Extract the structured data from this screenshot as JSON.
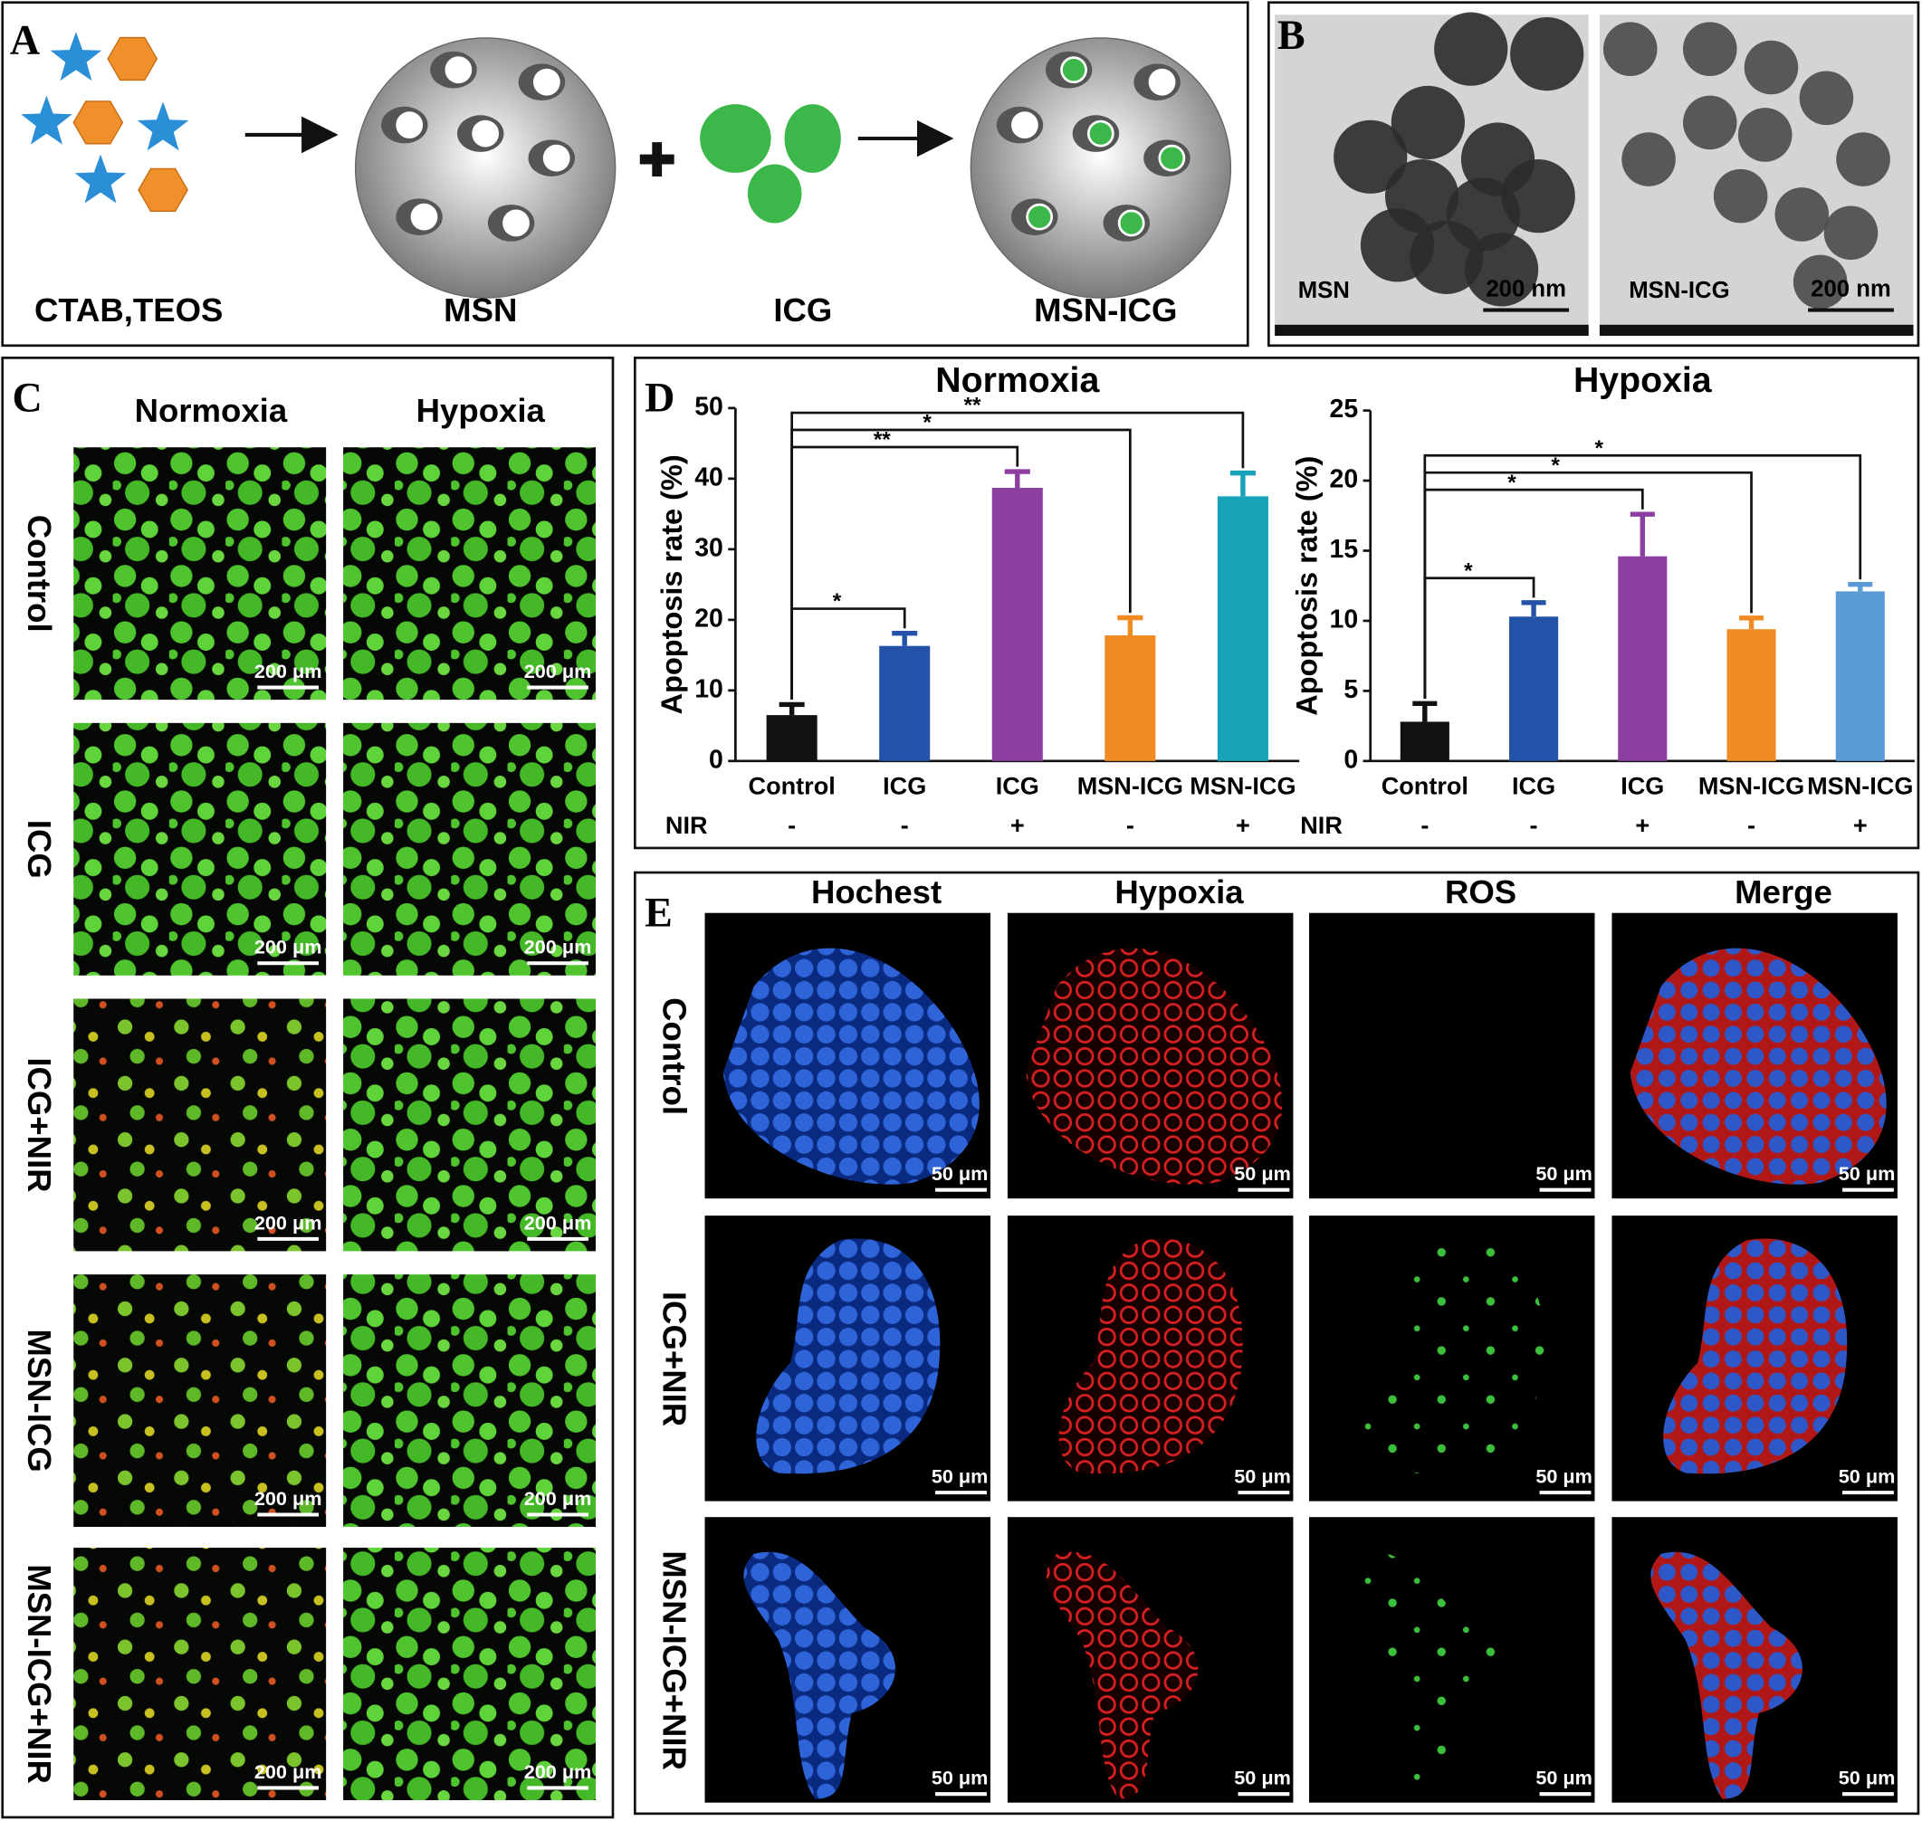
{
  "panels": {
    "A": {
      "label": "A",
      "items": [
        "CTAB,TEOS",
        "MSN",
        "ICG",
        "MSN-ICG"
      ]
    },
    "B": {
      "label": "B",
      "images": [
        {
          "name": "MSN",
          "scale": "200 nm"
        },
        {
          "name": "MSN-ICG",
          "scale": "200 nm"
        }
      ]
    },
    "C": {
      "label": "C",
      "columns": [
        "Normoxia",
        "Hypoxia"
      ],
      "rows": [
        "Control",
        "ICG",
        "ICG+NIR",
        "MSN-ICG",
        "MSN-ICG+NIR"
      ],
      "scale": "200 μm"
    },
    "D": {
      "label": "D"
    },
    "E": {
      "label": "E",
      "columns": [
        "Hochest",
        "Hypoxia",
        "ROS",
        "Merge"
      ],
      "rows": [
        "Control",
        "ICG+NIR",
        "MSN-ICG+NIR"
      ],
      "scale": "50 μm"
    }
  },
  "chart_data": [
    {
      "type": "bar",
      "title": "Normoxia",
      "ylabel": "Apoptosis rate (%)",
      "categories": [
        "Control",
        "ICG",
        "ICG",
        "MSN-ICG",
        "MSN-ICG"
      ],
      "nir_label": "NIR",
      "nir": [
        "-",
        "-",
        "+",
        "-",
        "+"
      ],
      "values": [
        6.5,
        16.3,
        38.7,
        17.8,
        37.5
      ],
      "errors": [
        1.5,
        1.8,
        2.3,
        2.5,
        3.3
      ],
      "colors": [
        "#111111",
        "#2352a8",
        "#8c3fa0",
        "#f08a23",
        "#17a2b8"
      ],
      "ylim": [
        0,
        50
      ],
      "yticks": [
        0,
        10,
        20,
        30,
        40,
        50
      ],
      "significance": [
        {
          "groups": [
            0,
            1
          ],
          "label": "*"
        },
        {
          "groups": [
            0,
            2
          ],
          "label": "**"
        },
        {
          "groups": [
            0,
            3
          ],
          "label": "*"
        },
        {
          "groups": [
            0,
            4
          ],
          "label": "**"
        }
      ]
    },
    {
      "type": "bar",
      "title": "Hypoxia",
      "ylabel": "Apoptosis rate (%)",
      "categories": [
        "Control",
        "ICG",
        "ICG",
        "MSN-ICG",
        "MSN-ICG"
      ],
      "nir_label": "NIR",
      "nir": [
        "-",
        "-",
        "+",
        "-",
        "+"
      ],
      "values": [
        2.8,
        10.3,
        14.6,
        9.4,
        12.1
      ],
      "errors": [
        1.3,
        1.0,
        3.0,
        0.8,
        0.5
      ],
      "colors": [
        "#111111",
        "#2352a8",
        "#8c3fa0",
        "#f08a23",
        "#5b9bd5"
      ],
      "ylim": [
        0,
        25
      ],
      "yticks": [
        0,
        5,
        10,
        15,
        20,
        25
      ],
      "significance": [
        {
          "groups": [
            0,
            1
          ],
          "label": "*"
        },
        {
          "groups": [
            0,
            2
          ],
          "label": "*"
        },
        {
          "groups": [
            0,
            3
          ],
          "label": "*"
        },
        {
          "groups": [
            0,
            4
          ],
          "label": "*"
        }
      ]
    }
  ]
}
